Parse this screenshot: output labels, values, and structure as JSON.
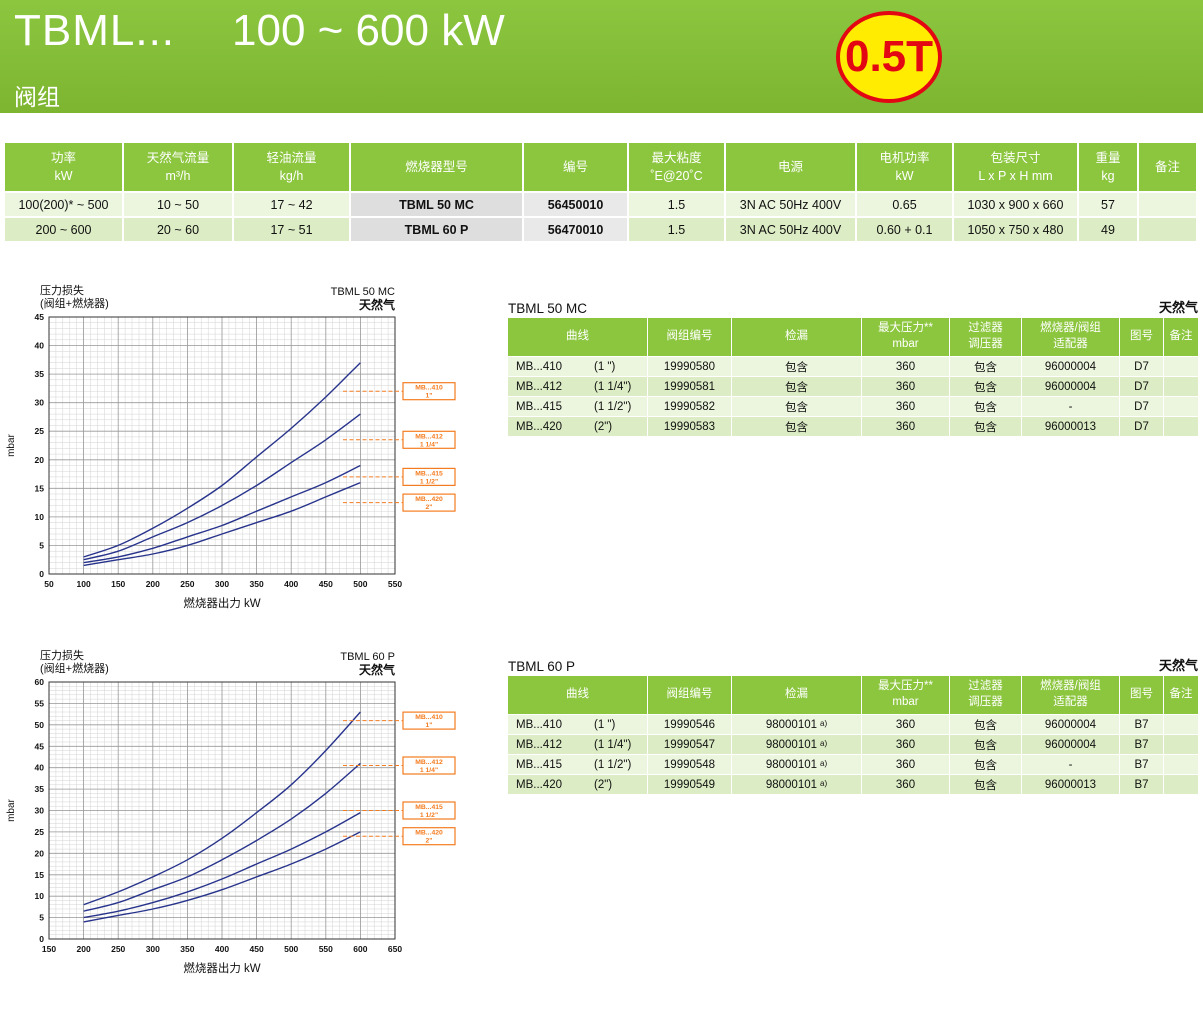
{
  "theme": {
    "green": "#8cc63f",
    "green2": "#7db531",
    "row_light": "#ecf5de",
    "row_mid": "#dcecc4",
    "gray1": "#dedede",
    "gray2": "#e9e9e9",
    "curve": "#28348c",
    "orange": "#f47c20",
    "badge_yellow": "#ffec00",
    "badge_red": "#e30613"
  },
  "header": {
    "model": "TBML...",
    "range": "100 ~  600 kW",
    "subtitle": "阀组",
    "badge": "0.5T"
  },
  "spec_table": {
    "headers": [
      "功率\nkW",
      "天然气流量\nm³/h",
      "轻油流量\nkg/h",
      "燃烧器型号",
      "编号",
      "最大粘度\n˚E@20˚C",
      "电源",
      "电机功率\nkW",
      "包装尺寸\nL x P x H  mm",
      "重量\nkg",
      "备注"
    ],
    "rows": [
      [
        "100(200)* ~ 500",
        "10 ~ 50",
        "17 ~ 42",
        "TBML 50 MC",
        "56450010",
        "1.5",
        "3N AC 50Hz 400V",
        "0.65",
        "1030 x 900 x 660",
        "57",
        ""
      ],
      [
        "200 ~ 600",
        "20 ~ 60",
        "17 ~ 51",
        "TBML 60 P",
        "56470010",
        "1.5",
        "3N AC 50Hz 400V",
        "0.60 + 0.1",
        "1050 x 750 x 480",
        "49",
        ""
      ]
    ]
  },
  "detail_tables": [
    {
      "title": "TBML 50 MC",
      "gas_label": "天然气",
      "headers": [
        "曲线",
        "阀组编号",
        "检漏",
        "最大压力**\nmbar",
        "过滤器\n调压器",
        "燃烧器/阀组\n适配器",
        "图号",
        "备注"
      ],
      "rows": [
        {
          "curve": "MB...410",
          "size": "(1 \")",
          "code": "19990580",
          "leak": "包含",
          "leak_sup": "",
          "max_pressure": "360",
          "filter": "包含",
          "adapter": "96000004",
          "figure": "D7",
          "note": ""
        },
        {
          "curve": "MB...412",
          "size": "(1 1/4\")",
          "code": "19990581",
          "leak": "包含",
          "leak_sup": "",
          "max_pressure": "360",
          "filter": "包含",
          "adapter": "96000004",
          "figure": "D7",
          "note": ""
        },
        {
          "curve": "MB...415",
          "size": "(1 1/2\")",
          "code": "19990582",
          "leak": "包含",
          "leak_sup": "",
          "max_pressure": "360",
          "filter": "包含",
          "adapter": "-",
          "figure": "D7",
          "note": ""
        },
        {
          "curve": "MB...420",
          "size": "(2\")",
          "code": "19990583",
          "leak": "包含",
          "leak_sup": "",
          "max_pressure": "360",
          "filter": "包含",
          "adapter": "96000013",
          "figure": "D7",
          "note": ""
        }
      ]
    },
    {
      "title": "TBML 60 P",
      "gas_label": "天然气",
      "headers": [
        "曲线",
        "阀组编号",
        "检漏",
        "最大压力**\nmbar",
        "过滤器\n调压器",
        "燃烧器/阀组\n适配器",
        "图号",
        "备注"
      ],
      "rows": [
        {
          "curve": "MB...410",
          "size": "(1 \")",
          "code": "19990546",
          "leak": "98000101",
          "leak_sup": "a)",
          "max_pressure": "360",
          "filter": "包含",
          "adapter": "96000004",
          "figure": "B7",
          "note": ""
        },
        {
          "curve": "MB...412",
          "size": "(1 1/4\")",
          "code": "19990547",
          "leak": "98000101",
          "leak_sup": "a)",
          "max_pressure": "360",
          "filter": "包含",
          "adapter": "96000004",
          "figure": "B7",
          "note": ""
        },
        {
          "curve": "MB...415",
          "size": "(1 1/2\")",
          "code": "19990548",
          "leak": "98000101",
          "leak_sup": "a)",
          "max_pressure": "360",
          "filter": "包含",
          "adapter": "-",
          "figure": "B7",
          "note": ""
        },
        {
          "curve": "MB...420",
          "size": "(2\")",
          "code": "19990549",
          "leak": "98000101",
          "leak_sup": "a)",
          "max_pressure": "360",
          "filter": "包含",
          "adapter": "96000013",
          "figure": "B7",
          "note": ""
        }
      ]
    }
  ],
  "chart_data": [
    {
      "type": "line",
      "title": "TBML 50 MC",
      "gas": "天然气",
      "corner_label": "压力损失\n(阀组+燃烧器)",
      "xlabel": "燃烧器出力  kW",
      "ylabel": "mbar",
      "xlim": [
        50,
        550
      ],
      "ylim": [
        0,
        45
      ],
      "xtick_step": 50,
      "ytick_step": 5,
      "xminor": 10,
      "yminor": 1,
      "grid": true,
      "series": [
        {
          "name": "MB...410",
          "size": "1\"",
          "label_y": 32,
          "x": [
            100,
            150,
            200,
            250,
            300,
            350,
            400,
            450,
            500
          ],
          "y": [
            3,
            5,
            8,
            11.5,
            15.5,
            20.5,
            25.5,
            31,
            37
          ]
        },
        {
          "name": "MB...412",
          "size": "1 1/4\"",
          "label_y": 23.5,
          "x": [
            100,
            150,
            200,
            250,
            300,
            350,
            400,
            450,
            500
          ],
          "y": [
            2.5,
            4,
            6.5,
            9,
            12,
            15.5,
            19.5,
            23.5,
            28
          ]
        },
        {
          "name": "MB...415",
          "size": "1 1/2\"",
          "label_y": 17,
          "x": [
            100,
            150,
            200,
            250,
            300,
            350,
            400,
            450,
            500
          ],
          "y": [
            2,
            3,
            4.5,
            6.5,
            8.5,
            11,
            13.5,
            16,
            19
          ]
        },
        {
          "name": "MB...420",
          "size": "2\"",
          "label_y": 12.5,
          "x": [
            100,
            150,
            200,
            250,
            300,
            350,
            400,
            450,
            500
          ],
          "y": [
            1.5,
            2.5,
            3.5,
            5,
            7,
            9,
            11,
            13.5,
            16
          ]
        }
      ]
    },
    {
      "type": "line",
      "title": "TBML 60 P",
      "gas": "天然气",
      "corner_label": "压力损失\n(阀组+燃烧器)",
      "xlabel": "燃烧器出力  kW",
      "ylabel": "mbar",
      "xlim": [
        150,
        650
      ],
      "ylim": [
        0,
        60
      ],
      "xtick_step": 50,
      "ytick_step": 5,
      "xminor": 10,
      "yminor": 1,
      "grid": true,
      "series": [
        {
          "name": "MB...410",
          "size": "1\"",
          "label_y": 51,
          "x": [
            200,
            250,
            300,
            350,
            400,
            450,
            500,
            550,
            600
          ],
          "y": [
            8,
            11,
            14.5,
            18.5,
            23.5,
            29.5,
            36,
            44,
            53
          ]
        },
        {
          "name": "MB...412",
          "size": "1 1/4\"",
          "label_y": 40.5,
          "x": [
            200,
            250,
            300,
            350,
            400,
            450,
            500,
            550,
            600
          ],
          "y": [
            6.5,
            8.5,
            11.5,
            14.5,
            18.5,
            23,
            28,
            34,
            41
          ]
        },
        {
          "name": "MB...415",
          "size": "1 1/2\"",
          "label_y": 30,
          "x": [
            200,
            250,
            300,
            350,
            400,
            450,
            500,
            550,
            600
          ],
          "y": [
            5,
            6.5,
            8.5,
            11,
            14,
            17.5,
            21,
            25,
            29.5
          ]
        },
        {
          "name": "MB...420",
          "size": "2\"",
          "label_y": 24,
          "x": [
            200,
            250,
            300,
            350,
            400,
            450,
            500,
            550,
            600
          ],
          "y": [
            4,
            5.5,
            7,
            9,
            11.5,
            14.5,
            17.5,
            21,
            25
          ]
        }
      ]
    }
  ]
}
